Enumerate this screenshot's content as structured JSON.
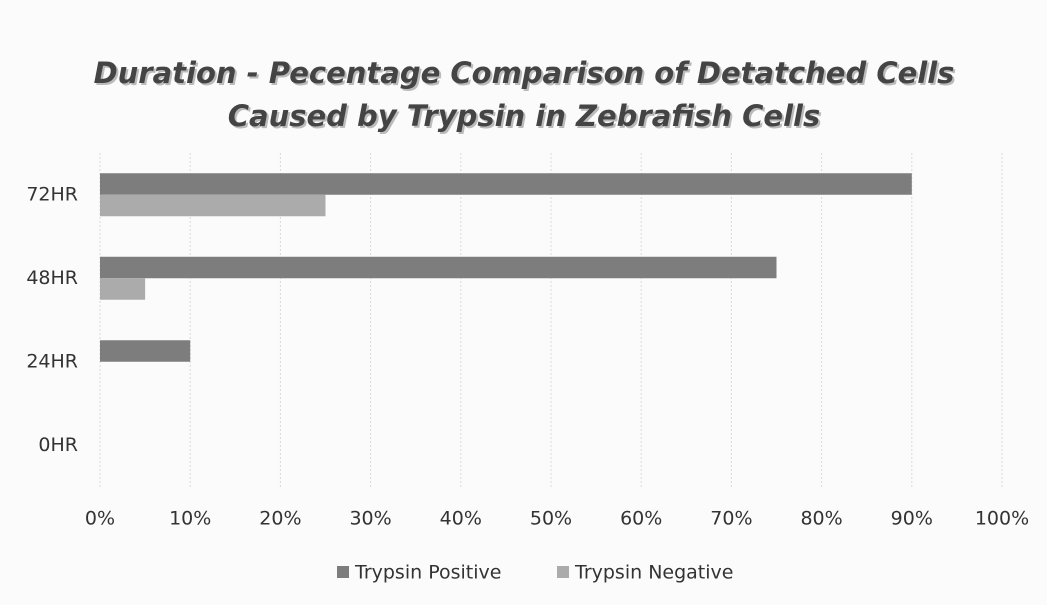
{
  "chart_data": {
    "type": "hbar",
    "title": [
      "Duration - Pecentage Comparison of Detatched Cells",
      "Caused by Trypsin in Zebrafish Cells"
    ],
    "categories": [
      "0HR",
      "24HR",
      "48HR",
      "72HR"
    ],
    "series": [
      {
        "name": "Trypsin Positive",
        "color": "#7d7d7d",
        "values": [
          0,
          10,
          75,
          90
        ]
      },
      {
        "name": "Trypsin Negative",
        "color": "#ababab",
        "values": [
          0,
          0,
          5,
          25
        ]
      }
    ],
    "xlim": [
      0,
      100
    ],
    "xticks": [
      {
        "value": 0,
        "label": "0%"
      },
      {
        "value": 10,
        "label": "10%"
      },
      {
        "value": 20,
        "label": "20%"
      },
      {
        "value": 30,
        "label": "30%"
      },
      {
        "value": 40,
        "label": "40%"
      },
      {
        "value": 50,
        "label": "50%"
      },
      {
        "value": 60,
        "label": "60%"
      },
      {
        "value": 70,
        "label": "70%"
      },
      {
        "value": 80,
        "label": "80%"
      },
      {
        "value": 90,
        "label": "90%"
      },
      {
        "value": 100,
        "label": "100%"
      }
    ],
    "grid": true,
    "legend": "bottom"
  }
}
